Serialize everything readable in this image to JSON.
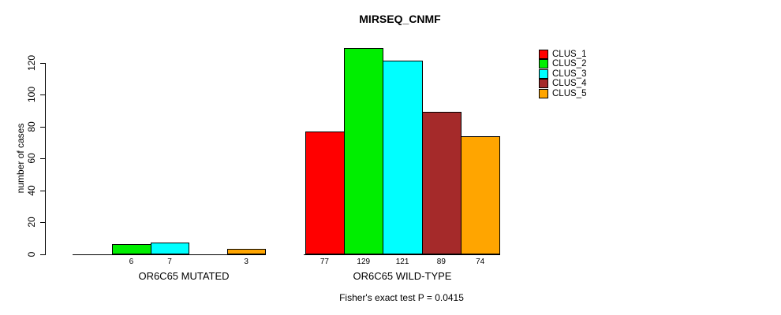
{
  "title": "MIRSEQ_CNMF",
  "footer": "Fisher's exact test P = 0.0415",
  "chart_data": {
    "type": "bar",
    "title": "MIRSEQ_CNMF",
    "ylabel": "number of cases",
    "xlabel": "",
    "ylim": [
      0,
      120
    ],
    "yticks": [
      0,
      20,
      40,
      60,
      80,
      100,
      120
    ],
    "grid": false,
    "legend_position": "top-right",
    "series": [
      {
        "name": "CLUS_1",
        "color": "#ff0000"
      },
      {
        "name": "CLUS_2",
        "color": "#00ee00"
      },
      {
        "name": "CLUS_3",
        "color": "#00ffff"
      },
      {
        "name": "CLUS_4",
        "color": "#a52a2a"
      },
      {
        "name": "CLUS_5",
        "color": "#ffa500"
      }
    ],
    "groups": [
      {
        "label": "OR6C65 MUTATED",
        "values": [
          0,
          6,
          7,
          0,
          3
        ],
        "bar_labels": [
          "",
          "6",
          "7",
          "",
          "3"
        ]
      },
      {
        "label": "OR6C65 WILD-TYPE",
        "values": [
          77,
          129,
          121,
          89,
          74
        ],
        "bar_labels": [
          "77",
          "129",
          "121",
          "89",
          "74"
        ]
      }
    ],
    "annotation": "Fisher's exact test P = 0.0415"
  }
}
